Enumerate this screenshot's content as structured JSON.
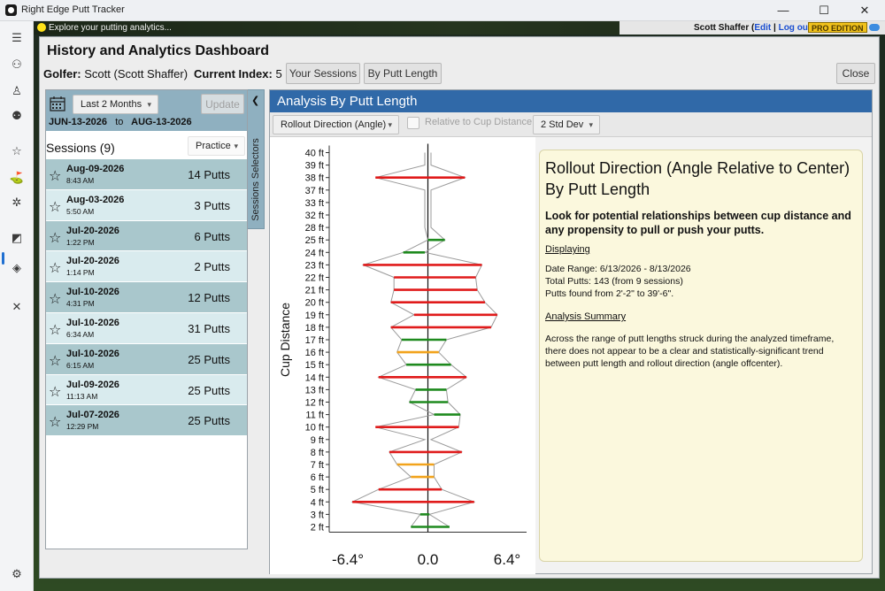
{
  "window": {
    "title": "Right Edge Putt Tracker",
    "min_glyph": "—",
    "max_glyph": "☐",
    "close_glyph": "✕"
  },
  "banner": {
    "message": "Explore your putting analytics...",
    "user_name": "Scott Shaffer",
    "edit_label": "Edit",
    "logout_label": "Log out",
    "edition": "PRO EDITION"
  },
  "page": {
    "title": "History and Analytics Dashboard",
    "golfer_label": "Golfer:",
    "golfer_value": "Scott (Scott Shaffer)",
    "index_label": "Current Index:",
    "index_value": "5"
  },
  "header_buttons": {
    "your_sessions": "Your Sessions",
    "by_putt_length": "By Putt Length",
    "close": "Close"
  },
  "left_panel": {
    "range_select": "Last 2 Months",
    "update_label": "Update",
    "date_from": "JUN-13-2026",
    "date_to_word": "to",
    "date_to": "AUG-13-2026",
    "sessions_label": "Sessions (9)",
    "filter_select": "Practice",
    "sessions": [
      {
        "date": "Aug-09-2026",
        "time": "8:43 AM",
        "putts": "14 Putts"
      },
      {
        "date": "Aug-03-2026",
        "time": "5:50 AM",
        "putts": "3 Putts"
      },
      {
        "date": "Jul-20-2026",
        "time": "1:22 PM",
        "putts": "6 Putts"
      },
      {
        "date": "Jul-20-2026",
        "time": "1:14 PM",
        "putts": "2 Putts"
      },
      {
        "date": "Jul-10-2026",
        "time": "4:31 PM",
        "putts": "12 Putts"
      },
      {
        "date": "Jul-10-2026",
        "time": "6:34 AM",
        "putts": "31 Putts"
      },
      {
        "date": "Jul-10-2026",
        "time": "6:15 AM",
        "putts": "25 Putts"
      },
      {
        "date": "Jul-09-2026",
        "time": "11:13 AM",
        "putts": "25 Putts"
      },
      {
        "date": "Jul-07-2026",
        "time": "12:29 PM",
        "putts": "25 Putts"
      }
    ]
  },
  "selectors_tab": {
    "label": "Sessions Selectors",
    "arrow": "❮"
  },
  "analysis": {
    "title": "Analysis By Putt Length",
    "metric_select": "Rollout Direction (Angle)",
    "relative_label": "Relative to Cup Distance",
    "std_select": "2 Std Dev"
  },
  "chart_data": {
    "type": "bar",
    "orientation": "horizontal",
    "ylabel": "Cup Distance",
    "x_tick_labels": [
      "-6.4°",
      "0.0",
      "6.4°"
    ],
    "xlim": [
      -6.4,
      6.4
    ],
    "categories": [
      "2 ft",
      "3 ft",
      "4 ft",
      "5 ft",
      "6 ft",
      "7 ft",
      "8 ft",
      "9 ft",
      "10 ft",
      "11 ft",
      "12 ft",
      "13 ft",
      "14 ft",
      "15 ft",
      "16 ft",
      "17 ft",
      "18 ft",
      "19 ft",
      "20 ft",
      "21 ft",
      "22 ft",
      "23 ft",
      "24 ft",
      "25 ft",
      "28 ft",
      "32 ft",
      "33 ft",
      "37 ft",
      "38 ft",
      "39 ft",
      "40 ft"
    ],
    "bar_min": [
      -1.1,
      -0.5,
      -4.9,
      -3.2,
      -1.1,
      -2.0,
      -2.5,
      0,
      -3.4,
      0.4,
      -1.2,
      -0.8,
      -3.2,
      -1.4,
      -2.0,
      -1.7,
      -2.4,
      -0.9,
      -2.4,
      -2.2,
      -2.2,
      -4.2,
      -1.6,
      0,
      0,
      0,
      0,
      0,
      -3.4,
      0,
      0
    ],
    "bar_max": [
      1.4,
      0.1,
      3.0,
      0.9,
      0.4,
      0.4,
      2.2,
      0,
      2.0,
      2.1,
      1.3,
      1.2,
      2.5,
      1.5,
      0.7,
      1.2,
      4.1,
      4.5,
      3.7,
      3.2,
      3.1,
      3.5,
      -0.2,
      1.1,
      0,
      0,
      0,
      0,
      2.4,
      0,
      0
    ],
    "bar_color": [
      "green",
      "green",
      "red",
      "red",
      "orange",
      "orange",
      "red",
      "",
      "red",
      "green",
      "green",
      "green",
      "red",
      "green",
      "orange",
      "green",
      "red",
      "red",
      "red",
      "red",
      "red",
      "red",
      "green",
      "green",
      "",
      "",
      "",
      "",
      "red",
      "",
      ""
    ],
    "colors": {
      "red": "#e01b1b",
      "green": "#1e8a1e",
      "orange": "#f2a31b",
      "envelope": "#9a9a9a"
    }
  },
  "info": {
    "title": "Rollout Direction (Angle Relative to Center) By Putt Length",
    "subtitle": "Look for potential relationships between cup distance and any propensity to pull or push your putts.",
    "displaying_h": "Displaying",
    "date_range": "Date Range: 6/13/2026 - 8/13/2026",
    "total_putts": "Total Putts: 143 (from 9 sessions)",
    "putts_found": "Putts found from 2'-2\" to 39'-6\".",
    "summary_h": "Analysis Summary",
    "summary": "Across the range of putt lengths struck during the analyzed timeframe, there does not appear to be a clear and statistically-significant trend between putt length and rollout direction (angle offcenter)."
  }
}
